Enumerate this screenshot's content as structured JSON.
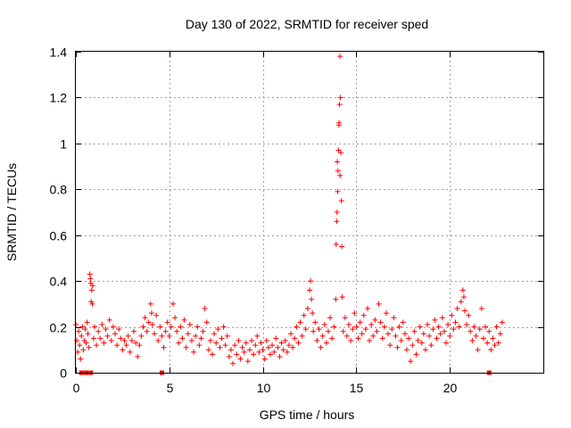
{
  "chart_data": {
    "type": "scatter",
    "title": "Day 130 of 2022, SRMTID for receiver sped",
    "xlabel": "GPS time / hours",
    "ylabel": "SRMTID / TECUs",
    "xlim": [
      0,
      25
    ],
    "ylim": [
      0,
      1.4
    ],
    "xticks": [
      0,
      5,
      10,
      15,
      20
    ],
    "xtick_labels": [
      "0",
      "5",
      "10",
      "15",
      "20"
    ],
    "yticks": [
      0,
      0.2,
      0.4,
      0.6,
      0.8,
      1.0,
      1.2,
      1.4
    ],
    "ytick_labels": [
      "0",
      "0.2",
      "0.4",
      "0.6",
      "0.8",
      "1",
      "1.2",
      "1.4"
    ],
    "grid": true,
    "marker": "+",
    "color": "#ff0000",
    "series": [
      {
        "name": "SRMTID",
        "points": [
          [
            0.0,
            0.21
          ],
          [
            0.05,
            0.14
          ],
          [
            0.1,
            0.09
          ],
          [
            0.15,
            0.18
          ],
          [
            0.2,
            0.12
          ],
          [
            0.25,
            0.06
          ],
          [
            0.3,
            0.16
          ],
          [
            0.35,
            0.2
          ],
          [
            0.4,
            0.1
          ],
          [
            0.45,
            0.14
          ],
          [
            0.5,
            0.19
          ],
          [
            0.55,
            0.13
          ],
          [
            0.6,
            0.22
          ],
          [
            0.65,
            0.17
          ],
          [
            0.7,
            0.11
          ],
          [
            0.75,
            0.43
          ],
          [
            0.8,
            0.39
          ],
          [
            0.85,
            0.36
          ],
          [
            0.78,
            0.41
          ],
          [
            0.88,
            0.3
          ],
          [
            0.82,
            0.31
          ],
          [
            0.9,
            0.38
          ],
          [
            0.95,
            0.15
          ],
          [
            1.0,
            0.2
          ],
          [
            1.1,
            0.12
          ],
          [
            1.2,
            0.18
          ],
          [
            1.3,
            0.15
          ],
          [
            1.4,
            0.21
          ],
          [
            1.5,
            0.13
          ],
          [
            1.6,
            0.19
          ],
          [
            1.7,
            0.16
          ],
          [
            1.8,
            0.23
          ],
          [
            1.9,
            0.14
          ],
          [
            2.0,
            0.2
          ],
          [
            2.1,
            0.17
          ],
          [
            2.2,
            0.12
          ],
          [
            2.3,
            0.19
          ],
          [
            2.4,
            0.15
          ],
          [
            2.5,
            0.1
          ],
          [
            2.6,
            0.14
          ],
          [
            2.7,
            0.12
          ],
          [
            2.8,
            0.16
          ],
          [
            2.9,
            0.09
          ],
          [
            3.0,
            0.14
          ],
          [
            3.1,
            0.18
          ],
          [
            3.2,
            0.13
          ],
          [
            3.3,
            0.07
          ],
          [
            3.4,
            0.12
          ],
          [
            3.5,
            0.16
          ],
          [
            3.6,
            0.2
          ],
          [
            3.7,
            0.24
          ],
          [
            3.8,
            0.18
          ],
          [
            3.9,
            0.22
          ],
          [
            4.0,
            0.3
          ],
          [
            4.05,
            0.26
          ],
          [
            4.1,
            0.21
          ],
          [
            4.2,
            0.17
          ],
          [
            4.3,
            0.25
          ],
          [
            4.4,
            0.14
          ],
          [
            4.5,
            0.2
          ],
          [
            4.6,
            0.16
          ],
          [
            4.7,
            0.11
          ],
          [
            4.8,
            0.18
          ],
          [
            4.9,
            0.22
          ],
          [
            5.0,
            0.16
          ],
          [
            5.1,
            0.2
          ],
          [
            5.2,
            0.3
          ],
          [
            5.3,
            0.24
          ],
          [
            5.4,
            0.18
          ],
          [
            5.5,
            0.13
          ],
          [
            5.6,
            0.2
          ],
          [
            5.7,
            0.15
          ],
          [
            5.8,
            0.23
          ],
          [
            5.9,
            0.11
          ],
          [
            6.0,
            0.17
          ],
          [
            6.1,
            0.21
          ],
          [
            6.2,
            0.14
          ],
          [
            6.3,
            0.09
          ],
          [
            6.4,
            0.16
          ],
          [
            6.5,
            0.2
          ],
          [
            6.6,
            0.12
          ],
          [
            6.7,
            0.15
          ],
          [
            6.8,
            0.18
          ],
          [
            6.9,
            0.28
          ],
          [
            7.0,
            0.22
          ],
          [
            7.1,
            0.1
          ],
          [
            7.2,
            0.14
          ],
          [
            7.3,
            0.08
          ],
          [
            7.4,
            0.17
          ],
          [
            7.5,
            0.13
          ],
          [
            7.6,
            0.19
          ],
          [
            7.7,
            0.11
          ],
          [
            7.8,
            0.15
          ],
          [
            7.9,
            0.2
          ],
          [
            8.0,
            0.12
          ],
          [
            8.1,
            0.16
          ],
          [
            8.2,
            0.07
          ],
          [
            8.3,
            0.1
          ],
          [
            8.4,
            0.04
          ],
          [
            8.5,
            0.12
          ],
          [
            8.6,
            0.08
          ],
          [
            8.7,
            0.14
          ],
          [
            8.8,
            0.06
          ],
          [
            8.9,
            0.11
          ],
          [
            9.0,
            0.09
          ],
          [
            9.1,
            0.13
          ],
          [
            9.2,
            0.05
          ],
          [
            9.3,
            0.1
          ],
          [
            9.4,
            0.14
          ],
          [
            9.5,
            0.08
          ],
          [
            9.6,
            0.12
          ],
          [
            9.7,
            0.16
          ],
          [
            9.8,
            0.09
          ],
          [
            9.9,
            0.13
          ],
          [
            10.0,
            0.1
          ],
          [
            10.1,
            0.06
          ],
          [
            10.2,
            0.14
          ],
          [
            10.3,
            0.11
          ],
          [
            10.4,
            0.08
          ],
          [
            10.5,
            0.12
          ],
          [
            10.6,
            0.09
          ],
          [
            10.7,
            0.15
          ],
          [
            10.8,
            0.11
          ],
          [
            10.9,
            0.07
          ],
          [
            11.0,
            0.13
          ],
          [
            11.1,
            0.1
          ],
          [
            11.2,
            0.14
          ],
          [
            11.3,
            0.09
          ],
          [
            11.4,
            0.12
          ],
          [
            11.5,
            0.17
          ],
          [
            11.6,
            0.11
          ],
          [
            11.7,
            0.15
          ],
          [
            11.8,
            0.2
          ],
          [
            11.9,
            0.13
          ],
          [
            12.0,
            0.22
          ],
          [
            12.1,
            0.16
          ],
          [
            12.2,
            0.25
          ],
          [
            12.3,
            0.19
          ],
          [
            12.4,
            0.28
          ],
          [
            12.5,
            0.36
          ],
          [
            12.55,
            0.4
          ],
          [
            12.6,
            0.32
          ],
          [
            12.65,
            0.26
          ],
          [
            12.7,
            0.18
          ],
          [
            12.8,
            0.22
          ],
          [
            12.9,
            0.14
          ],
          [
            13.0,
            0.19
          ],
          [
            13.1,
            0.11
          ],
          [
            13.2,
            0.16
          ],
          [
            13.3,
            0.21
          ],
          [
            13.4,
            0.13
          ],
          [
            13.5,
            0.18
          ],
          [
            13.6,
            0.24
          ],
          [
            13.7,
            0.15
          ],
          [
            13.8,
            0.2
          ],
          [
            13.9,
            0.32
          ],
          [
            13.92,
            0.56
          ],
          [
            13.95,
            0.66
          ],
          [
            13.97,
            0.7
          ],
          [
            14.0,
            0.79
          ],
          [
            14.02,
            0.88
          ],
          [
            14.05,
            0.97
          ],
          [
            14.07,
            1.08
          ],
          [
            14.1,
            1.17
          ],
          [
            14.12,
            1.38
          ],
          [
            14.15,
            1.2
          ],
          [
            14.17,
            0.96
          ],
          [
            14.2,
            0.75
          ],
          [
            14.22,
            0.55
          ],
          [
            14.25,
            0.33
          ],
          [
            13.98,
            0.92
          ],
          [
            14.08,
            1.09
          ],
          [
            14.13,
            0.86
          ],
          [
            14.3,
            0.18
          ],
          [
            14.4,
            0.24
          ],
          [
            14.5,
            0.16
          ],
          [
            14.6,
            0.21
          ],
          [
            14.7,
            0.14
          ],
          [
            14.8,
            0.19
          ],
          [
            14.9,
            0.26
          ],
          [
            15.0,
            0.2
          ],
          [
            15.1,
            0.15
          ],
          [
            15.2,
            0.22
          ],
          [
            15.3,
            0.17
          ],
          [
            15.4,
            0.25
          ],
          [
            15.5,
            0.19
          ],
          [
            15.6,
            0.28
          ],
          [
            15.7,
            0.14
          ],
          [
            15.8,
            0.21
          ],
          [
            15.9,
            0.16
          ],
          [
            16.0,
            0.23
          ],
          [
            16.1,
            0.18
          ],
          [
            16.2,
            0.3
          ],
          [
            16.3,
            0.22
          ],
          [
            16.4,
            0.15
          ],
          [
            16.5,
            0.2
          ],
          [
            16.6,
            0.26
          ],
          [
            16.7,
            0.17
          ],
          [
            16.8,
            0.12
          ],
          [
            16.9,
            0.19
          ],
          [
            17.0,
            0.24
          ],
          [
            17.1,
            0.16
          ],
          [
            17.2,
            0.11
          ],
          [
            17.3,
            0.2
          ],
          [
            17.4,
            0.14
          ],
          [
            17.5,
            0.22
          ],
          [
            17.6,
            0.17
          ],
          [
            17.7,
            0.1
          ],
          [
            17.8,
            0.15
          ],
          [
            17.9,
            0.05
          ],
          [
            18.0,
            0.12
          ],
          [
            18.1,
            0.18
          ],
          [
            18.2,
            0.08
          ],
          [
            18.3,
            0.14
          ],
          [
            18.4,
            0.2
          ],
          [
            18.5,
            0.13
          ],
          [
            18.6,
            0.17
          ],
          [
            18.7,
            0.1
          ],
          [
            18.8,
            0.21
          ],
          [
            18.9,
            0.16
          ],
          [
            19.0,
            0.12
          ],
          [
            19.1,
            0.19
          ],
          [
            19.2,
            0.23
          ],
          [
            19.3,
            0.15
          ],
          [
            19.4,
            0.2
          ],
          [
            19.5,
            0.17
          ],
          [
            19.6,
            0.24
          ],
          [
            19.7,
            0.18
          ],
          [
            19.8,
            0.13
          ],
          [
            19.9,
            0.21
          ],
          [
            20.0,
            0.16
          ],
          [
            20.1,
            0.25
          ],
          [
            20.2,
            0.19
          ],
          [
            20.3,
            0.22
          ],
          [
            20.4,
            0.28
          ],
          [
            20.5,
            0.2
          ],
          [
            20.6,
            0.31
          ],
          [
            20.7,
            0.36
          ],
          [
            20.75,
            0.33
          ],
          [
            20.8,
            0.27
          ],
          [
            20.9,
            0.21
          ],
          [
            21.0,
            0.25
          ],
          [
            21.1,
            0.18
          ],
          [
            21.2,
            0.14
          ],
          [
            21.3,
            0.2
          ],
          [
            21.4,
            0.16
          ],
          [
            21.5,
            0.1
          ],
          [
            21.6,
            0.19
          ],
          [
            21.7,
            0.28
          ],
          [
            21.8,
            0.15
          ],
          [
            21.9,
            0.2
          ],
          [
            22.0,
            0.13
          ],
          [
            22.1,
            0.18
          ],
          [
            22.2,
            0.1
          ],
          [
            22.3,
            0.15
          ],
          [
            22.4,
            0.12
          ],
          [
            22.5,
            0.2
          ],
          [
            22.6,
            0.13
          ],
          [
            22.7,
            0.17
          ],
          [
            22.8,
            0.22
          ]
        ],
        "zero_markers": [
          0.3,
          0.55,
          0.8,
          4.6,
          22.1
        ]
      }
    ]
  }
}
